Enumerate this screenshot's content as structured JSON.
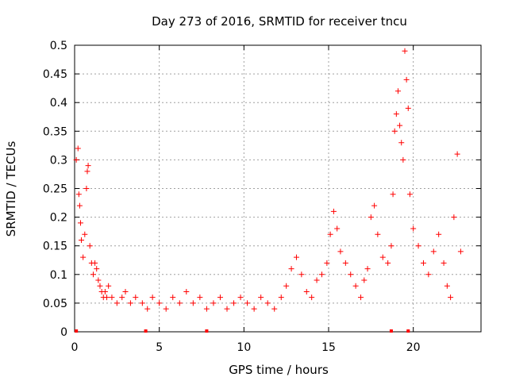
{
  "chart_data": {
    "type": "scatter",
    "title": "Day 273 of 2016, SRMTID for receiver tncu",
    "xlabel": "GPS time / hours",
    "ylabel": "SRMTID / TECUs",
    "xlim": [
      0,
      24
    ],
    "ylim": [
      0,
      0.5
    ],
    "x_ticks": [
      0,
      5,
      10,
      15,
      20
    ],
    "x_tick_labels": [
      "0",
      "5",
      "10",
      "15",
      "20"
    ],
    "y_ticks": [
      0,
      0.05,
      0.1,
      0.15,
      0.2,
      0.25,
      0.3,
      0.35,
      0.4,
      0.45,
      0.5
    ],
    "y_tick_labels": [
      "0",
      "0.05",
      "0.1",
      "0.15",
      "0.2",
      "0.25",
      "0.3",
      "0.35",
      "0.4",
      "0.45",
      "0.5"
    ],
    "grid": true,
    "marker": "+",
    "color": "#ff0000",
    "series": [
      {
        "name": "SRMTID",
        "x": [
          0.1,
          0.2,
          0.25,
          0.3,
          0.35,
          0.4,
          0.5,
          0.6,
          0.7,
          0.75,
          0.8,
          0.9,
          1.0,
          1.1,
          1.2,
          1.3,
          1.4,
          1.5,
          1.6,
          1.7,
          1.8,
          1.9,
          2.0,
          2.2,
          2.5,
          2.8,
          3.0,
          3.3,
          3.6,
          4.0,
          4.3,
          4.6,
          5.0,
          5.4,
          5.8,
          6.2,
          6.6,
          7.0,
          7.4,
          7.8,
          8.2,
          8.6,
          9.0,
          9.4,
          9.8,
          10.2,
          10.6,
          11.0,
          11.4,
          11.8,
          12.2,
          12.5,
          12.8,
          13.1,
          13.4,
          13.7,
          14.0,
          14.3,
          14.6,
          14.9,
          15.1,
          15.3,
          15.5,
          15.7,
          16.0,
          16.3,
          16.6,
          16.9,
          17.1,
          17.3,
          17.5,
          17.7,
          17.9,
          18.2,
          18.5,
          18.7,
          18.8,
          18.9,
          19.0,
          19.1,
          19.2,
          19.3,
          19.4,
          19.5,
          19.6,
          19.7,
          19.8,
          20.0,
          20.3,
          20.6,
          20.9,
          21.2,
          21.5,
          21.8,
          22.0,
          22.2,
          22.4,
          22.6,
          22.8
        ],
        "y": [
          0.3,
          0.32,
          0.24,
          0.22,
          0.19,
          0.16,
          0.13,
          0.17,
          0.25,
          0.28,
          0.29,
          0.15,
          0.12,
          0.1,
          0.12,
          0.11,
          0.09,
          0.08,
          0.07,
          0.06,
          0.07,
          0.06,
          0.08,
          0.06,
          0.05,
          0.06,
          0.07,
          0.05,
          0.06,
          0.05,
          0.04,
          0.06,
          0.05,
          0.04,
          0.06,
          0.05,
          0.07,
          0.05,
          0.06,
          0.04,
          0.05,
          0.06,
          0.04,
          0.05,
          0.06,
          0.05,
          0.04,
          0.06,
          0.05,
          0.04,
          0.06,
          0.08,
          0.11,
          0.13,
          0.1,
          0.07,
          0.06,
          0.09,
          0.1,
          0.12,
          0.17,
          0.21,
          0.18,
          0.14,
          0.12,
          0.1,
          0.08,
          0.06,
          0.09,
          0.11,
          0.2,
          0.22,
          0.17,
          0.13,
          0.12,
          0.15,
          0.24,
          0.35,
          0.38,
          0.42,
          0.36,
          0.33,
          0.3,
          0.49,
          0.44,
          0.39,
          0.24,
          0.18,
          0.15,
          0.12,
          0.1,
          0.14,
          0.17,
          0.12,
          0.08,
          0.06,
          0.2,
          0.31,
          0.14
        ]
      }
    ],
    "baseline_markers_x": [
      0.1,
      4.2,
      7.8,
      18.7,
      19.7
    ]
  }
}
